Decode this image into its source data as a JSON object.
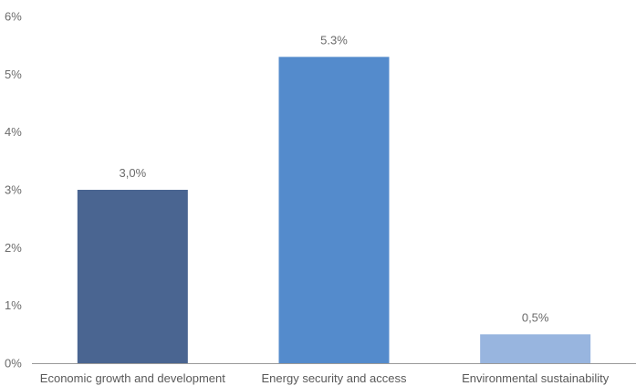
{
  "chart_data": {
    "type": "bar",
    "title": "",
    "xlabel": "",
    "ylabel": "",
    "categories": [
      "Economic growth and development",
      "Energy security and access",
      "Environmental sustainability"
    ],
    "values": [
      3.0,
      5.3,
      0.5
    ],
    "data_labels": [
      "3,0%",
      "5.3%",
      "0,5%"
    ],
    "colors": [
      "#4a6591",
      "#548bcc",
      "#98b5df"
    ],
    "ylim": [
      0,
      6
    ],
    "yticks": [
      0,
      1,
      2,
      3,
      4,
      5,
      6
    ],
    "ytick_labels": [
      "0%",
      "1%",
      "2%",
      "3%",
      "4%",
      "5%",
      "6%"
    ],
    "grid": false,
    "legend": "none",
    "axis_color": "#9a9a9a"
  }
}
